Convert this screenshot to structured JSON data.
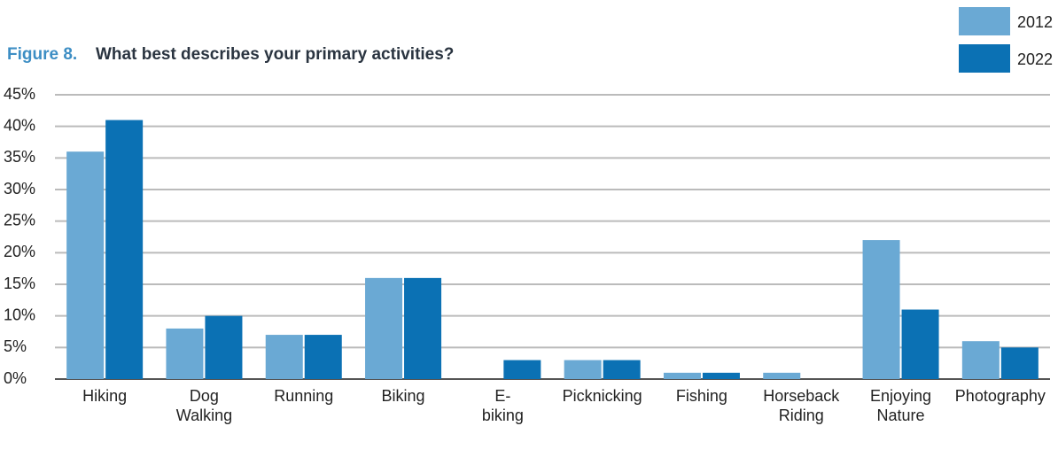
{
  "chart_data": {
    "type": "bar",
    "figure_label": "Figure 8.",
    "title": "What best describes your primary activities?",
    "categories": [
      "Hiking",
      "Dog Walking",
      "Running",
      "Biking",
      "E-biking",
      "Picknicking",
      "Fishing",
      "Horseback Riding",
      "Enjoying Nature",
      "Photography"
    ],
    "series": [
      {
        "name": "2012",
        "color": "#6aa9d4",
        "values": [
          36,
          8,
          7,
          16,
          0,
          3,
          1,
          1,
          22,
          6
        ]
      },
      {
        "name": "2022",
        "color": "#0b71b4",
        "values": [
          41,
          10,
          7,
          16,
          3,
          3,
          1,
          0,
          11,
          5
        ]
      }
    ],
    "ylim": [
      0,
      45
    ],
    "yticks": [
      {
        "value": 0,
        "label": "0%"
      },
      {
        "value": 5,
        "label": "5%"
      },
      {
        "value": 10,
        "label": "10%"
      },
      {
        "value": 15,
        "label": "15%"
      },
      {
        "value": 20,
        "label": "20%"
      },
      {
        "value": 25,
        "label": "25%"
      },
      {
        "value": 30,
        "label": "30%"
      },
      {
        "value": 35,
        "label": "35%"
      },
      {
        "value": 40,
        "label": "40%"
      },
      {
        "value": 45,
        "label": "45%"
      }
    ],
    "grid": true,
    "legend": "top-right"
  }
}
